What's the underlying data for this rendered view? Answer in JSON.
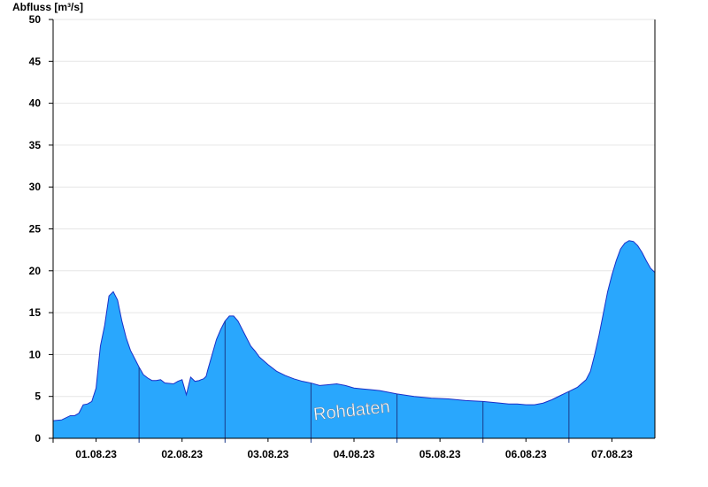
{
  "chart_data": {
    "type": "area",
    "ylabel": "Abfluss [m³/s]",
    "xlabel": "",
    "ylim": [
      0,
      50
    ],
    "yticks": [
      0,
      5,
      10,
      15,
      20,
      25,
      30,
      35,
      40,
      45,
      50
    ],
    "xlim": [
      0,
      7
    ],
    "xticks": [
      {
        "x": 0.5,
        "label": "01.08.23"
      },
      {
        "x": 1.5,
        "label": "02.08.23"
      },
      {
        "x": 2.5,
        "label": "03.08.23"
      },
      {
        "x": 3.5,
        "label": "04.08.23"
      },
      {
        "x": 4.5,
        "label": "05.08.23"
      },
      {
        "x": 5.5,
        "label": "06.08.23"
      },
      {
        "x": 6.5,
        "label": "07.08.23"
      }
    ],
    "day_boundaries": [
      1,
      2,
      3,
      4,
      5,
      6
    ],
    "grid": true,
    "fill_color": "#29a7fd",
    "line_color": "#1a2fc8",
    "watermark": "Rohdaten",
    "series": [
      {
        "x": [
          0,
          0.1,
          0.2,
          0.25,
          0.3,
          0.35,
          0.4,
          0.45,
          0.5,
          0.55,
          0.6,
          0.65,
          0.7,
          0.75,
          0.8,
          0.85,
          0.9,
          0.95,
          1.0,
          1.05,
          1.1,
          1.15,
          1.2,
          1.25,
          1.3,
          1.4,
          1.45,
          1.5,
          1.55,
          1.6,
          1.65,
          1.7,
          1.72,
          1.75,
          1.78,
          1.8,
          1.85,
          1.9,
          1.95,
          2.0,
          2.05,
          2.1,
          2.15,
          2.2,
          2.25,
          2.3,
          2.35,
          2.4,
          2.5,
          2.6,
          2.7,
          2.8,
          2.9,
          3.0,
          3.1,
          3.2,
          3.3,
          3.4,
          3.5,
          3.6,
          3.7,
          3.8,
          3.9,
          4.0,
          4.2,
          4.4,
          4.6,
          4.8,
          5.0,
          5.2,
          5.3,
          5.4,
          5.5,
          5.6,
          5.7,
          5.8,
          5.9,
          6.0,
          6.1,
          6.2,
          6.25,
          6.3,
          6.35,
          6.4,
          6.45,
          6.5,
          6.55,
          6.6,
          6.65,
          6.7,
          6.75,
          6.8,
          6.85,
          6.9,
          6.95,
          7.0
        ],
        "y": [
          2.1,
          2.2,
          2.7,
          2.7,
          3.0,
          4.0,
          4.1,
          4.4,
          6.0,
          11.0,
          13.5,
          17.0,
          17.5,
          16.5,
          14.0,
          12.0,
          10.5,
          9.5,
          8.5,
          7.6,
          7.2,
          6.9,
          6.9,
          7.0,
          6.6,
          6.5,
          6.8,
          7.0,
          5.2,
          7.3,
          6.8,
          6.9,
          7.0,
          7.1,
          7.4,
          8.2,
          10.0,
          11.8,
          13.0,
          14.0,
          14.6,
          14.6,
          14.0,
          13.0,
          12.0,
          11.0,
          10.4,
          9.7,
          8.8,
          8.0,
          7.5,
          7.1,
          6.8,
          6.6,
          6.3,
          6.4,
          6.5,
          6.3,
          6.0,
          5.9,
          5.8,
          5.7,
          5.5,
          5.3,
          5.0,
          4.8,
          4.7,
          4.5,
          4.4,
          4.2,
          4.1,
          4.1,
          4.0,
          4.0,
          4.2,
          4.6,
          5.1,
          5.6,
          6.1,
          7.0,
          8.0,
          10.0,
          12.3,
          14.9,
          17.5,
          19.5,
          21.2,
          22.6,
          23.3,
          23.6,
          23.5,
          23.0,
          22.2,
          21.2,
          20.3,
          19.8
        ]
      }
    ]
  }
}
